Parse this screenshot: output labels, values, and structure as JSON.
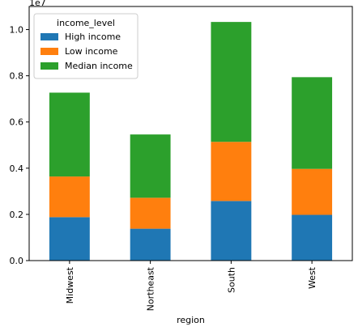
{
  "chart_data": {
    "type": "bar",
    "stacked": true,
    "categories": [
      "Midwest",
      "Northeast",
      "South",
      "West"
    ],
    "series": [
      {
        "name": "High income",
        "values": [
          1880000,
          1380000,
          2580000,
          1980000
        ],
        "color": "#1f77b4"
      },
      {
        "name": "Low income",
        "values": [
          1760000,
          1340000,
          2560000,
          1990000
        ],
        "color": "#ff7f0e"
      },
      {
        "name": "Median income",
        "values": [
          3630000,
          2740000,
          5190000,
          3970000
        ],
        "color": "#2ca02c"
      }
    ],
    "xlabel": "region",
    "ylabel": "",
    "ylim": [
      0,
      11000000
    ],
    "yticks": [
      0.0,
      0.2,
      0.4,
      0.6,
      0.8,
      1.0
    ],
    "yticklabels": [
      "0.0",
      "0.2",
      "0.4",
      "0.6",
      "0.8",
      "1.0"
    ],
    "y_offset_text": "1e7",
    "legend": {
      "title": "income_level",
      "position": "top-left"
    },
    "grid": false
  }
}
